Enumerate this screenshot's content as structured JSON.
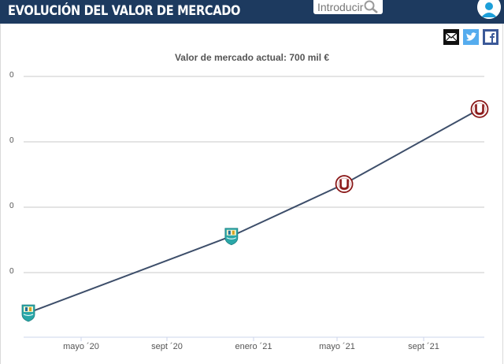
{
  "header": {
    "title": "EVOLUCIÓN DEL VALOR DE MERCADO",
    "search_placeholder": "Introducir"
  },
  "colors": {
    "header_bg": "#1d3a5f",
    "line": "#3d4e6a",
    "club_u_red": "#8b1a1a",
    "club_badge_teal": "#2aa7a8",
    "twitter": "#55acee",
    "facebook": "#3b5998"
  },
  "share_icons": [
    "mail-icon",
    "twitter-icon",
    "facebook-icon"
  ],
  "chart_data": {
    "type": "line",
    "title": "Valor de mercado actual: 700 mil €",
    "x_ticks": [
      "mayo ´20",
      "sept ´20",
      "enero ´21",
      "mayo ´21",
      "sept ´21"
    ],
    "xlim": [
      "2020-03",
      "2021-11"
    ],
    "y_ticks": [
      "0",
      "0",
      "0",
      "0"
    ],
    "grid": true,
    "points": [
      {
        "x": "2020-03",
        "value": 75,
        "club": "teal-crest-icon"
      },
      {
        "x": "2020-12",
        "value": 310,
        "club": "teal-crest-icon"
      },
      {
        "x": "2021-05",
        "value": 470,
        "club": "universitario-icon"
      },
      {
        "x": "2021-11",
        "value": 700,
        "club": "universitario-icon"
      }
    ]
  }
}
